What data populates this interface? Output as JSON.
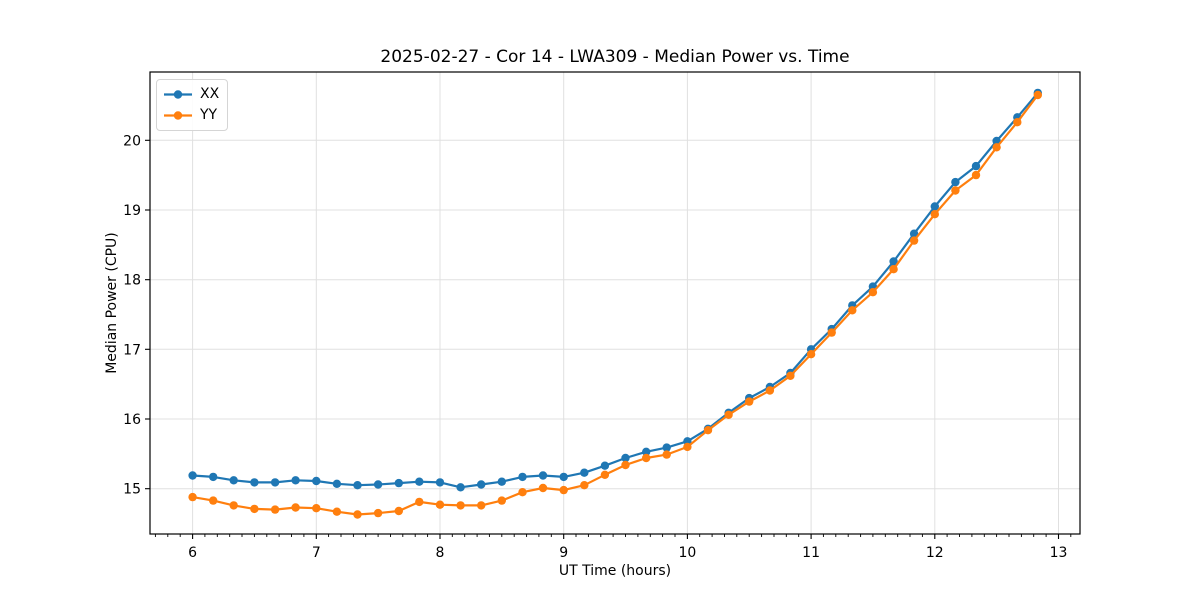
{
  "chart_data": {
    "type": "line",
    "title": "2025-02-27 - Cor 14 - LWA309 - Median Power vs. Time",
    "xlabel": "UT Time (hours)",
    "ylabel": "Median Power (CPU)",
    "xlim": [
      5.656,
      13.174
    ],
    "ylim": [
      14.35,
      20.98
    ],
    "xticks": [
      6,
      7,
      8,
      9,
      10,
      11,
      12,
      13
    ],
    "yticks": [
      15,
      16,
      17,
      18,
      19,
      20
    ],
    "x_minor_tick_step": 0.1,
    "grid": true,
    "grid_color": "#e0e0e0",
    "spine_color": "#000000",
    "legend_position": "upper-left",
    "x": [
      6.0,
      6.167,
      6.333,
      6.5,
      6.667,
      6.833,
      7.0,
      7.167,
      7.333,
      7.5,
      7.667,
      7.833,
      8.0,
      8.167,
      8.333,
      8.5,
      8.667,
      8.833,
      9.0,
      9.167,
      9.333,
      9.5,
      9.667,
      9.833,
      10.0,
      10.167,
      10.333,
      10.5,
      10.667,
      10.833,
      11.0,
      11.167,
      11.333,
      11.5,
      11.667,
      11.833,
      12.0,
      12.167,
      12.333,
      12.5,
      12.667,
      12.833
    ],
    "series": [
      {
        "name": "XX",
        "color": "#1f77b4",
        "marker": "circle",
        "values": [
          15.19,
          15.17,
          15.12,
          15.09,
          15.09,
          15.12,
          15.11,
          15.07,
          15.05,
          15.06,
          15.08,
          15.1,
          15.09,
          15.02,
          15.06,
          15.1,
          15.17,
          15.19,
          15.17,
          15.23,
          15.33,
          15.44,
          15.53,
          15.59,
          15.68,
          15.86,
          16.09,
          16.3,
          16.46,
          16.66,
          17.0,
          17.29,
          17.63,
          17.9,
          18.26,
          18.66,
          19.05,
          19.4,
          19.63,
          19.99,
          20.33,
          20.68
        ]
      },
      {
        "name": "YY",
        "color": "#ff7f0e",
        "marker": "circle",
        "values": [
          14.88,
          14.83,
          14.76,
          14.71,
          14.7,
          14.73,
          14.72,
          14.67,
          14.63,
          14.65,
          14.68,
          14.81,
          14.77,
          14.76,
          14.76,
          14.83,
          14.95,
          15.01,
          14.98,
          15.05,
          15.2,
          15.34,
          15.44,
          15.49,
          15.6,
          15.84,
          16.06,
          16.25,
          16.41,
          16.62,
          16.93,
          17.24,
          17.56,
          17.82,
          18.15,
          18.56,
          18.94,
          19.28,
          19.5,
          19.9,
          20.26,
          20.65
        ]
      }
    ]
  }
}
